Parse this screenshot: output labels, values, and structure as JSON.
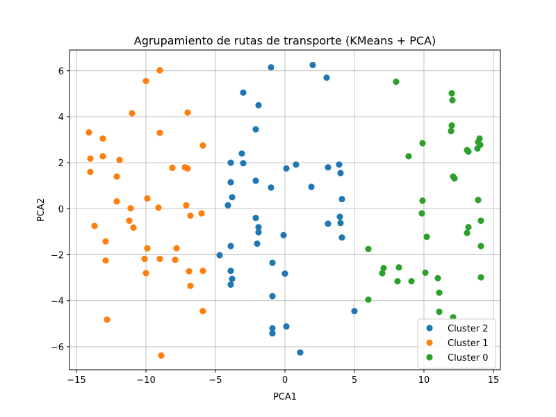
{
  "chart_data": {
    "type": "scatter",
    "title": "Agrupamiento de rutas de transporte (KMeans + PCA)",
    "xlabel": "PCA1",
    "ylabel": "PCA2",
    "xlim": [
      -15.5,
      15.5
    ],
    "ylim": [
      -7,
      6.9
    ],
    "xticks": [
      -15,
      -10,
      -5,
      0,
      5,
      10,
      15
    ],
    "yticks": [
      -6,
      -4,
      -2,
      0,
      2,
      4,
      6
    ],
    "grid": true,
    "legend_position": "lower-right",
    "series": [
      {
        "name": "Cluster 2",
        "color": "#1f77b4",
        "points": [
          [
            -1.0,
            6.15
          ],
          [
            2.0,
            6.25
          ],
          [
            3.0,
            5.7
          ],
          [
            -3.0,
            5.05
          ],
          [
            -1.9,
            4.5
          ],
          [
            -2.1,
            3.45
          ],
          [
            -3.1,
            2.4
          ],
          [
            -3.0,
            1.98
          ],
          [
            -3.9,
            2.0
          ],
          [
            0.1,
            1.75
          ],
          [
            0.8,
            1.92
          ],
          [
            3.1,
            1.8
          ],
          [
            3.9,
            1.92
          ],
          [
            4.0,
            1.55
          ],
          [
            -3.9,
            1.15
          ],
          [
            -2.1,
            1.22
          ],
          [
            -1.0,
            0.92
          ],
          [
            1.9,
            0.95
          ],
          [
            -3.8,
            0.5
          ],
          [
            4.1,
            0.42
          ],
          [
            -4.1,
            0.15
          ],
          [
            -2.1,
            -0.4
          ],
          [
            3.95,
            -0.35
          ],
          [
            -1.9,
            -0.8
          ],
          [
            3.1,
            -0.65
          ],
          [
            4.0,
            -0.62
          ],
          [
            -1.9,
            -1.02
          ],
          [
            -0.1,
            -1.15
          ],
          [
            4.1,
            -1.25
          ],
          [
            -2.0,
            -1.52
          ],
          [
            -3.9,
            -1.62
          ],
          [
            -4.7,
            -2.02
          ],
          [
            -0.9,
            -2.35
          ],
          [
            -3.9,
            -2.7
          ],
          [
            -3.8,
            -3.05
          ],
          [
            0.0,
            -2.82
          ],
          [
            -3.9,
            -3.3
          ],
          [
            -0.9,
            -3.8
          ],
          [
            0.1,
            -5.12
          ],
          [
            -0.9,
            -5.2
          ],
          [
            -0.9,
            -5.42
          ],
          [
            5.0,
            -4.45
          ],
          [
            1.1,
            -6.25
          ]
        ]
      },
      {
        "name": "Cluster 1",
        "color": "#ff7f0e",
        "points": [
          [
            -9.0,
            6.02
          ],
          [
            -10.0,
            5.55
          ],
          [
            -11.0,
            4.15
          ],
          [
            -7.0,
            4.18
          ],
          [
            -14.1,
            3.32
          ],
          [
            -9.0,
            3.3
          ],
          [
            -13.1,
            3.05
          ],
          [
            -5.9,
            2.75
          ],
          [
            -14.0,
            2.18
          ],
          [
            -13.1,
            2.28
          ],
          [
            -11.9,
            2.12
          ],
          [
            -8.1,
            1.78
          ],
          [
            -7.2,
            1.8
          ],
          [
            -7.0,
            1.75
          ],
          [
            -14.0,
            1.6
          ],
          [
            -12.1,
            1.4
          ],
          [
            -9.9,
            0.45
          ],
          [
            -12.1,
            0.32
          ],
          [
            -7.1,
            0.15
          ],
          [
            -11.1,
            0.02
          ],
          [
            -9.1,
            0.05
          ],
          [
            -6.0,
            -0.2
          ],
          [
            -6.8,
            -0.3
          ],
          [
            -11.2,
            -0.52
          ],
          [
            -13.7,
            -0.75
          ],
          [
            -10.9,
            -0.82
          ],
          [
            -12.9,
            -1.42
          ],
          [
            -9.9,
            -1.72
          ],
          [
            -7.8,
            -1.72
          ],
          [
            -10.1,
            -2.18
          ],
          [
            -9.0,
            -2.18
          ],
          [
            -12.9,
            -2.25
          ],
          [
            -7.9,
            -2.22
          ],
          [
            -6.9,
            -2.72
          ],
          [
            -5.9,
            -2.7
          ],
          [
            -10.0,
            -2.8
          ],
          [
            -6.8,
            -3.35
          ],
          [
            -5.9,
            -4.45
          ],
          [
            -12.8,
            -4.82
          ],
          [
            -8.9,
            -6.38
          ]
        ]
      },
      {
        "name": "Cluster 0",
        "color": "#2ca02c",
        "points": [
          [
            8.0,
            5.52
          ],
          [
            12.0,
            5.02
          ],
          [
            12.05,
            4.72
          ],
          [
            12.0,
            3.62
          ],
          [
            11.95,
            3.38
          ],
          [
            14.0,
            3.05
          ],
          [
            13.9,
            2.9
          ],
          [
            14.05,
            2.78
          ],
          [
            9.9,
            2.85
          ],
          [
            13.1,
            2.55
          ],
          [
            13.2,
            2.48
          ],
          [
            13.85,
            2.62
          ],
          [
            8.9,
            2.28
          ],
          [
            12.1,
            1.4
          ],
          [
            12.2,
            1.32
          ],
          [
            9.9,
            0.35
          ],
          [
            13.9,
            0.38
          ],
          [
            9.85,
            -0.2
          ],
          [
            14.1,
            -0.52
          ],
          [
            13.2,
            -0.8
          ],
          [
            13.1,
            -1.05
          ],
          [
            10.2,
            -1.22
          ],
          [
            14.1,
            -1.62
          ],
          [
            6.0,
            -1.75
          ],
          [
            7.1,
            -2.58
          ],
          [
            8.2,
            -2.55
          ],
          [
            7.0,
            -2.8
          ],
          [
            10.1,
            -2.78
          ],
          [
            8.1,
            -3.15
          ],
          [
            9.1,
            -3.15
          ],
          [
            11.0,
            -3.02
          ],
          [
            14.1,
            -2.98
          ],
          [
            11.1,
            -3.65
          ],
          [
            6.0,
            -3.95
          ],
          [
            11.1,
            -4.48
          ],
          [
            12.1,
            -4.72
          ]
        ]
      }
    ]
  }
}
